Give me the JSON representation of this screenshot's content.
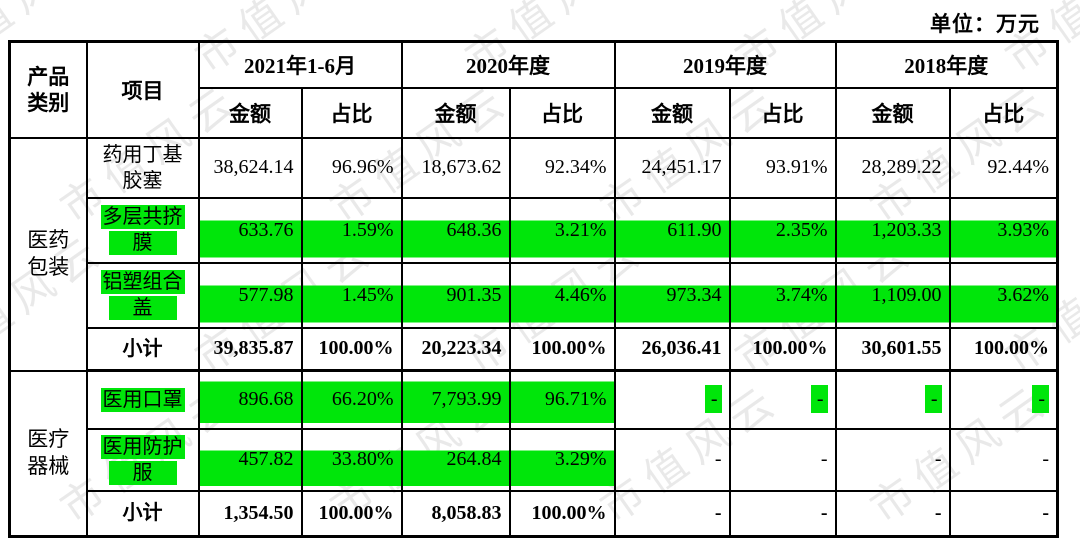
{
  "meta": {
    "unit_label": "单位：万元",
    "watermark_text": "市值风云",
    "highlight_color": "#00e60a"
  },
  "table": {
    "header": {
      "category_lines": [
        "产品",
        "类别"
      ],
      "item": "项目",
      "amount_label": "金额",
      "ratio_label": "占比",
      "periods": [
        {
          "label": "2021年1-6月"
        },
        {
          "label": "2020年度"
        },
        {
          "label": "2019年度"
        },
        {
          "label": "2018年度"
        }
      ]
    },
    "sections": [
      {
        "category_lines": [
          "医药",
          "包装"
        ],
        "rows": [
          {
            "item_lines": [
              "药用丁基",
              "胶塞"
            ],
            "highlight": false,
            "dash_highlight": false,
            "subtotal": false,
            "values": [
              "38,624.14",
              "96.96%",
              "18,673.62",
              "92.34%",
              "24,451.17",
              "93.91%",
              "28,289.22",
              "92.44%"
            ]
          },
          {
            "item_lines": [
              "多层共挤",
              "膜"
            ],
            "highlight": true,
            "dash_highlight": false,
            "subtotal": false,
            "values": [
              "633.76",
              "1.59%",
              "648.36",
              "3.21%",
              "611.90",
              "2.35%",
              "1,203.33",
              "3.93%"
            ]
          },
          {
            "item_lines": [
              "铝塑组合",
              "盖"
            ],
            "highlight": true,
            "dash_highlight": false,
            "subtotal": false,
            "values": [
              "577.98",
              "1.45%",
              "901.35",
              "4.46%",
              "973.34",
              "3.74%",
              "1,109.00",
              "3.62%"
            ]
          },
          {
            "item_lines": [
              "小计"
            ],
            "highlight": false,
            "dash_highlight": false,
            "subtotal": true,
            "values": [
              "39,835.87",
              "100.00%",
              "20,223.34",
              "100.00%",
              "26,036.41",
              "100.00%",
              "30,601.55",
              "100.00%"
            ]
          }
        ]
      },
      {
        "category_lines": [
          "医疗",
          "器械"
        ],
        "rows": [
          {
            "item_lines": [
              "医用口罩"
            ],
            "highlight": true,
            "dash_highlight": true,
            "subtotal": false,
            "values": [
              "896.68",
              "66.20%",
              "7,793.99",
              "96.71%",
              "-",
              "-",
              "-",
              "-"
            ]
          },
          {
            "item_lines": [
              "医用防护",
              "服"
            ],
            "highlight": true,
            "dash_highlight": false,
            "subtotal": false,
            "values": [
              "457.82",
              "33.80%",
              "264.84",
              "3.29%",
              "-",
              "-",
              "-",
              "-"
            ]
          },
          {
            "item_lines": [
              "小计"
            ],
            "highlight": false,
            "dash_highlight": false,
            "subtotal": true,
            "values": [
              "1,354.50",
              "100.00%",
              "8,058.83",
              "100.00%",
              "-",
              "-",
              "-",
              "-"
            ]
          }
        ]
      }
    ]
  }
}
